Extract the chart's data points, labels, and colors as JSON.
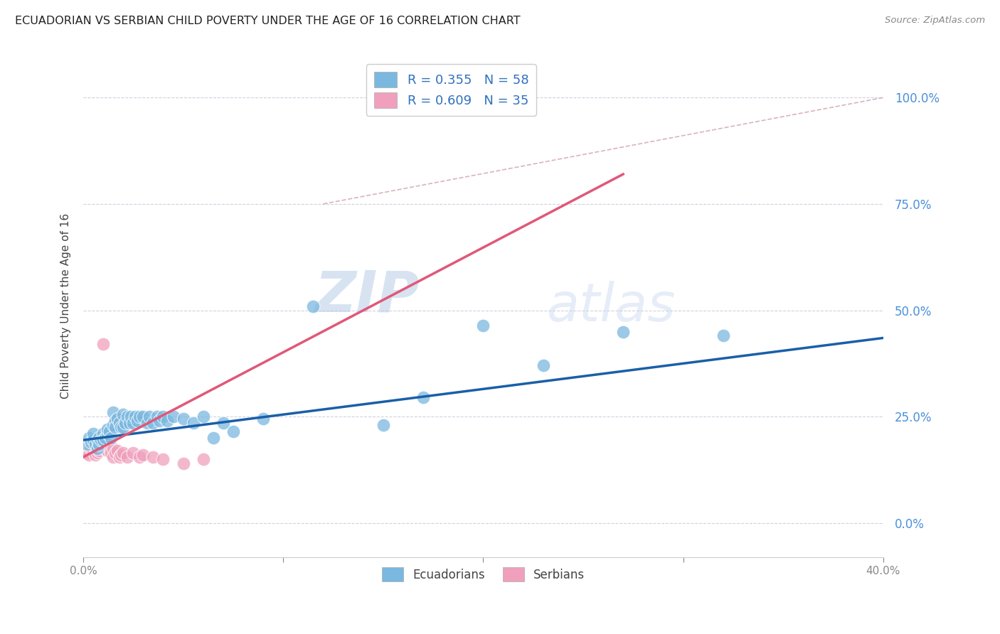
{
  "title": "ECUADORIAN VS SERBIAN CHILD POVERTY UNDER THE AGE OF 16 CORRELATION CHART",
  "source": "Source: ZipAtlas.com",
  "ylabel": "Child Poverty Under the Age of 16",
  "legend_entries": [
    {
      "label": "R = 0.355   N = 58",
      "color": "#a8c8e8"
    },
    {
      "label": "R = 0.609   N = 35",
      "color": "#f4b0c8"
    }
  ],
  "legend_labels": [
    "Ecuadorians",
    "Serbians"
  ],
  "ecuadorian_color": "#7ab8e0",
  "serbian_color": "#f0a0bc",
  "ecuadorian_line_color": "#1a5fa8",
  "serbian_line_color": "#e05878",
  "diagonal_line_color": "#d0a0b0",
  "watermark_zip": "ZIP",
  "watermark_atlas": "atlas",
  "background_color": "#ffffff",
  "grid_color": "#d0d0e0",
  "ecuadorian_points": [
    [
      0.002,
      0.185
    ],
    [
      0.003,
      0.2
    ],
    [
      0.004,
      0.19
    ],
    [
      0.005,
      0.195
    ],
    [
      0.005,
      0.21
    ],
    [
      0.006,
      0.185
    ],
    [
      0.007,
      0.195
    ],
    [
      0.007,
      0.175
    ],
    [
      0.008,
      0.2
    ],
    [
      0.008,
      0.185
    ],
    [
      0.009,
      0.195
    ],
    [
      0.01,
      0.21
    ],
    [
      0.01,
      0.195
    ],
    [
      0.011,
      0.2
    ],
    [
      0.012,
      0.21
    ],
    [
      0.012,
      0.22
    ],
    [
      0.013,
      0.215
    ],
    [
      0.014,
      0.2
    ],
    [
      0.015,
      0.26
    ],
    [
      0.015,
      0.23
    ],
    [
      0.016,
      0.24
    ],
    [
      0.016,
      0.225
    ],
    [
      0.017,
      0.245
    ],
    [
      0.018,
      0.235
    ],
    [
      0.019,
      0.225
    ],
    [
      0.02,
      0.255
    ],
    [
      0.02,
      0.225
    ],
    [
      0.021,
      0.235
    ],
    [
      0.022,
      0.25
    ],
    [
      0.023,
      0.235
    ],
    [
      0.024,
      0.25
    ],
    [
      0.025,
      0.235
    ],
    [
      0.026,
      0.25
    ],
    [
      0.027,
      0.24
    ],
    [
      0.028,
      0.25
    ],
    [
      0.03,
      0.25
    ],
    [
      0.032,
      0.235
    ],
    [
      0.033,
      0.25
    ],
    [
      0.035,
      0.235
    ],
    [
      0.037,
      0.25
    ],
    [
      0.038,
      0.24
    ],
    [
      0.04,
      0.25
    ],
    [
      0.042,
      0.24
    ],
    [
      0.045,
      0.25
    ],
    [
      0.05,
      0.245
    ],
    [
      0.055,
      0.235
    ],
    [
      0.06,
      0.25
    ],
    [
      0.065,
      0.2
    ],
    [
      0.07,
      0.235
    ],
    [
      0.075,
      0.215
    ],
    [
      0.09,
      0.245
    ],
    [
      0.115,
      0.51
    ],
    [
      0.15,
      0.23
    ],
    [
      0.17,
      0.295
    ],
    [
      0.2,
      0.465
    ],
    [
      0.23,
      0.37
    ],
    [
      0.27,
      0.45
    ],
    [
      0.32,
      0.44
    ]
  ],
  "serbian_points": [
    [
      0.002,
      0.165
    ],
    [
      0.003,
      0.16
    ],
    [
      0.004,
      0.175
    ],
    [
      0.005,
      0.17
    ],
    [
      0.006,
      0.175
    ],
    [
      0.006,
      0.16
    ],
    [
      0.007,
      0.175
    ],
    [
      0.007,
      0.165
    ],
    [
      0.008,
      0.185
    ],
    [
      0.008,
      0.17
    ],
    [
      0.009,
      0.195
    ],
    [
      0.009,
      0.18
    ],
    [
      0.01,
      0.175
    ],
    [
      0.01,
      0.42
    ],
    [
      0.011,
      0.175
    ],
    [
      0.012,
      0.18
    ],
    [
      0.012,
      0.17
    ],
    [
      0.013,
      0.175
    ],
    [
      0.014,
      0.165
    ],
    [
      0.015,
      0.175
    ],
    [
      0.015,
      0.155
    ],
    [
      0.016,
      0.165
    ],
    [
      0.017,
      0.17
    ],
    [
      0.018,
      0.155
    ],
    [
      0.019,
      0.16
    ],
    [
      0.02,
      0.165
    ],
    [
      0.022,
      0.155
    ],
    [
      0.025,
      0.165
    ],
    [
      0.028,
      0.155
    ],
    [
      0.03,
      0.16
    ],
    [
      0.035,
      0.155
    ],
    [
      0.04,
      0.15
    ],
    [
      0.05,
      0.14
    ],
    [
      0.06,
      0.15
    ],
    [
      0.2,
      1.0
    ]
  ],
  "xmin": 0.0,
  "xmax": 0.4,
  "ymin": -0.08,
  "ymax": 1.1,
  "ytick_vals": [
    0.0,
    0.25,
    0.5,
    0.75,
    1.0
  ],
  "xtick_vals": [
    0.0,
    0.1,
    0.2,
    0.3,
    0.4
  ],
  "xtick_labels": [
    "0.0%",
    "",
    "",
    "",
    "40.0%"
  ]
}
